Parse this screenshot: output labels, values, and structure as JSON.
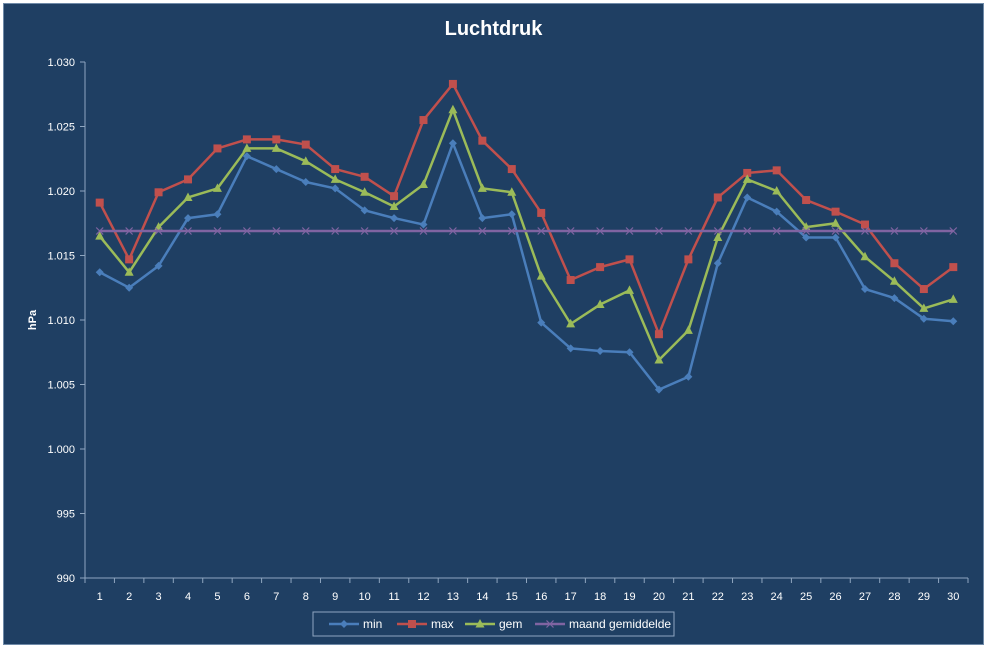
{
  "chart_data": {
    "type": "line",
    "title": "Luchtdruk",
    "xlabel": "",
    "ylabel": "hPa",
    "ylim": [
      990,
      1030
    ],
    "ytick_values": [
      990,
      995,
      1000,
      1005,
      1010,
      1015,
      1020,
      1025,
      1030
    ],
    "ytick_labels": [
      "990",
      "995",
      "1.000",
      "1.005",
      "1.010",
      "1.015",
      "1.020",
      "1.025",
      "1.030"
    ],
    "categories": [
      "1",
      "2",
      "3",
      "4",
      "5",
      "6",
      "7",
      "8",
      "9",
      "10",
      "11",
      "12",
      "13",
      "14",
      "15",
      "16",
      "17",
      "18",
      "19",
      "20",
      "21",
      "22",
      "23",
      "24",
      "25",
      "26",
      "27",
      "28",
      "29",
      "30"
    ],
    "grid": false,
    "legend_position": "bottom",
    "series": [
      {
        "name": "min",
        "color": "#4a7ebb",
        "marker": "diamond",
        "values": [
          1013.7,
          1012.5,
          1014.2,
          1017.9,
          1018.2,
          1022.7,
          1021.7,
          1020.7,
          1020.2,
          1018.5,
          1017.9,
          1017.4,
          1023.7,
          1017.9,
          1018.2,
          1009.8,
          1007.8,
          1007.6,
          1007.5,
          1004.6,
          1005.6,
          1014.4,
          1019.5,
          1018.4,
          1016.4,
          1016.4,
          1012.4,
          1011.7,
          1010.1,
          1009.9
        ]
      },
      {
        "name": "max",
        "color": "#c0504d",
        "marker": "square",
        "values": [
          1019.1,
          1014.7,
          1019.9,
          1020.9,
          1023.3,
          1024.0,
          1024.0,
          1023.6,
          1021.7,
          1021.1,
          1019.6,
          1025.5,
          1028.3,
          1023.9,
          1021.7,
          1018.3,
          1013.1,
          1014.1,
          1014.7,
          1008.9,
          1014.7,
          1019.5,
          1021.4,
          1021.6,
          1019.3,
          1018.4,
          1017.4,
          1014.4,
          1012.4,
          1014.1
        ]
      },
      {
        "name": "gem",
        "color": "#9bbb59",
        "marker": "triangle",
        "values": [
          1016.5,
          1013.7,
          1017.2,
          1019.5,
          1020.2,
          1023.3,
          1023.3,
          1022.3,
          1020.9,
          1019.9,
          1018.8,
          1020.5,
          1026.3,
          1020.2,
          1019.9,
          1013.4,
          1009.7,
          1011.2,
          1012.3,
          1006.9,
          1009.2,
          1016.4,
          1020.9,
          1020.0,
          1017.2,
          1017.5,
          1014.9,
          1013.0,
          1010.9,
          1011.6
        ]
      },
      {
        "name": "maand gemiddelde",
        "color": "#8064a2",
        "marker": "x",
        "values": [
          1016.9,
          1016.9,
          1016.9,
          1016.9,
          1016.9,
          1016.9,
          1016.9,
          1016.9,
          1016.9,
          1016.9,
          1016.9,
          1016.9,
          1016.9,
          1016.9,
          1016.9,
          1016.9,
          1016.9,
          1016.9,
          1016.9,
          1016.9,
          1016.9,
          1016.9,
          1016.9,
          1016.9,
          1016.9,
          1016.9,
          1016.9,
          1016.9,
          1016.9,
          1016.9
        ]
      }
    ]
  }
}
